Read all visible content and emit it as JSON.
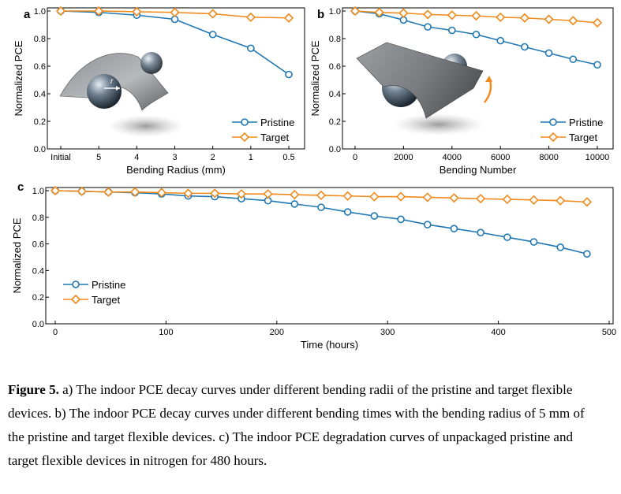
{
  "colors": {
    "pristine": "#1f77b4",
    "target": "#f08a1c"
  },
  "chart_data": [
    {
      "panel": "a",
      "type": "line",
      "xlabel": "Bending Radius (mm)",
      "ylabel": "Normalized PCE",
      "categories": [
        "Initial",
        "5",
        "4",
        "3",
        "2",
        "1",
        "0.5"
      ],
      "ylim": [
        0,
        1.0
      ],
      "yticks": [
        "0.0",
        "0.2",
        "0.4",
        "0.6",
        "0.8",
        "1.0"
      ],
      "legend": "bottom-right",
      "series": [
        {
          "name": "Pristine",
          "marker": "circle",
          "values": [
            1.0,
            0.99,
            0.97,
            0.94,
            0.83,
            0.73,
            0.54
          ]
        },
        {
          "name": "Target",
          "marker": "diamond",
          "values": [
            1.0,
            1.0,
            0.995,
            0.99,
            0.98,
            0.955,
            0.95
          ]
        }
      ]
    },
    {
      "panel": "b",
      "type": "line",
      "xlabel": "Bending Number",
      "ylabel": "Normalized PCE",
      "xlim": [
        0,
        10000
      ],
      "xticks": [
        "0",
        "2000",
        "4000",
        "6000",
        "8000",
        "10000"
      ],
      "ylim": [
        0,
        1.0
      ],
      "yticks": [
        "0.0",
        "0.2",
        "0.4",
        "0.6",
        "0.8",
        "1.0"
      ],
      "legend": "bottom-right",
      "series": [
        {
          "name": "Pristine",
          "marker": "circle",
          "x": [
            0,
            1000,
            2000,
            3000,
            4000,
            5000,
            6000,
            7000,
            8000,
            9000,
            10000
          ],
          "values": [
            1.0,
            0.98,
            0.935,
            0.885,
            0.86,
            0.83,
            0.785,
            0.74,
            0.695,
            0.65,
            0.61
          ]
        },
        {
          "name": "Target",
          "marker": "diamond",
          "x": [
            0,
            1000,
            2000,
            3000,
            4000,
            5000,
            6000,
            7000,
            8000,
            9000,
            10000
          ],
          "values": [
            1.0,
            0.99,
            0.985,
            0.975,
            0.97,
            0.965,
            0.955,
            0.95,
            0.94,
            0.93,
            0.915
          ]
        }
      ]
    },
    {
      "panel": "c",
      "type": "line",
      "xlabel": "Time (hours)",
      "ylabel": "Normalized PCE",
      "xlim": [
        0,
        500
      ],
      "xticks": [
        "0",
        "100",
        "200",
        "300",
        "400",
        "500"
      ],
      "ylim": [
        0,
        1.0
      ],
      "yticks": [
        "0.0",
        "0.2",
        "0.4",
        "0.6",
        "0.8",
        "1.0"
      ],
      "legend": "bottom-left",
      "series": [
        {
          "name": "Pristine",
          "marker": "circle",
          "x": [
            0,
            24,
            48,
            72,
            96,
            120,
            144,
            168,
            192,
            216,
            240,
            264,
            288,
            312,
            336,
            360,
            384,
            408,
            432,
            456,
            480
          ],
          "values": [
            1.0,
            0.995,
            0.99,
            0.985,
            0.975,
            0.96,
            0.955,
            0.94,
            0.925,
            0.9,
            0.875,
            0.84,
            0.81,
            0.785,
            0.745,
            0.715,
            0.685,
            0.65,
            0.615,
            0.575,
            0.525
          ]
        },
        {
          "name": "Target",
          "marker": "diamond",
          "x": [
            0,
            24,
            48,
            72,
            96,
            120,
            144,
            168,
            192,
            216,
            240,
            264,
            288,
            312,
            336,
            360,
            384,
            408,
            432,
            456,
            480
          ],
          "values": [
            1.0,
            0.995,
            0.99,
            0.99,
            0.985,
            0.98,
            0.98,
            0.975,
            0.975,
            0.97,
            0.965,
            0.96,
            0.955,
            0.955,
            0.95,
            0.945,
            0.94,
            0.935,
            0.93,
            0.925,
            0.915
          ]
        }
      ]
    }
  ],
  "caption": {
    "label": "Figure 5.",
    "text": " a) The indoor PCE decay curves under different bending radii of the pristine and target flexible devices. b) The indoor PCE decay curves under different bending times with the bending radius of 5 mm of the pristine and target flexible devices. c) The indoor PCE degradation curves of unpackaged pristine and target flexible devices in nitrogen for 480 hours."
  },
  "illustration": {
    "radius_symbol": "r"
  }
}
